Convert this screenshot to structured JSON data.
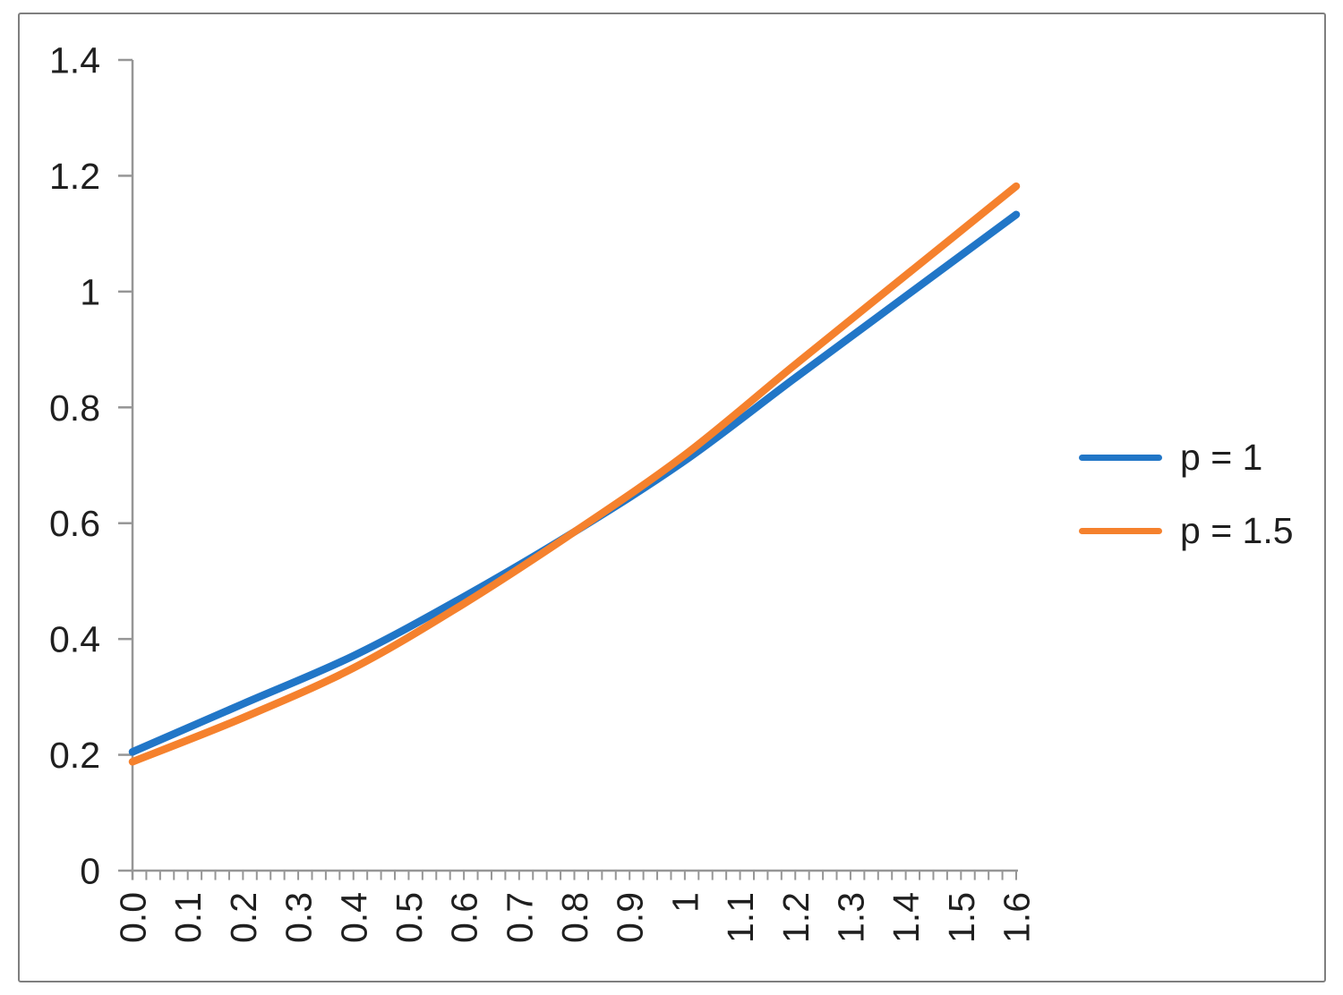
{
  "window": {
    "background_color": "#ffffff",
    "border_color": "#7f7f7f"
  },
  "chart_data": {
    "type": "line",
    "title": "",
    "xlabel": "",
    "ylabel": "",
    "x": [
      0.0,
      0.2,
      0.4,
      0.6,
      0.8,
      1.0,
      1.2,
      1.4,
      1.6
    ],
    "series": [
      {
        "name": "p = 1",
        "color": "#2176c7",
        "values": [
          0.205,
          0.288,
          0.371,
          0.473,
          0.585,
          0.708,
          0.851,
          0.992,
          1.133
        ]
      },
      {
        "name": "p = 1.5",
        "color": "#f5812d",
        "values": [
          0.188,
          0.264,
          0.35,
          0.461,
          0.585,
          0.718,
          0.874,
          1.028,
          1.182
        ]
      }
    ],
    "xlim": [
      0.0,
      1.6
    ],
    "ylim": [
      0.0,
      1.4
    ],
    "x_tick_labels": [
      "0.0",
      "0.1",
      "0.2",
      "0.3",
      "0.4",
      "0.5",
      "0.6",
      "0.7",
      "0.8",
      "0.9",
      "1",
      "1.1",
      "1.2",
      "1.3",
      "1.4",
      "1.5",
      "1.6"
    ],
    "x_major_tick_step": 0.1,
    "x_minor_tick_step": 0.025,
    "y_tick_labels": [
      "0",
      "0.2",
      "0.4",
      "0.6",
      "0.8",
      "1",
      "1.2",
      "1.4"
    ],
    "y_tick_step": 0.2,
    "x_label_rotated": true,
    "grid": false,
    "legend_position": "right-middle",
    "axis_color": "#969696",
    "tick_label_color": "#1f1f1f",
    "crossing_point_note": "curves intersect near x=0.8, y=0.585"
  },
  "legend": {
    "items": [
      {
        "label": "p = 1",
        "swatch": "line-swatch-blue"
      },
      {
        "label": "p = 1.5",
        "swatch": "line-swatch-orange"
      }
    ]
  }
}
